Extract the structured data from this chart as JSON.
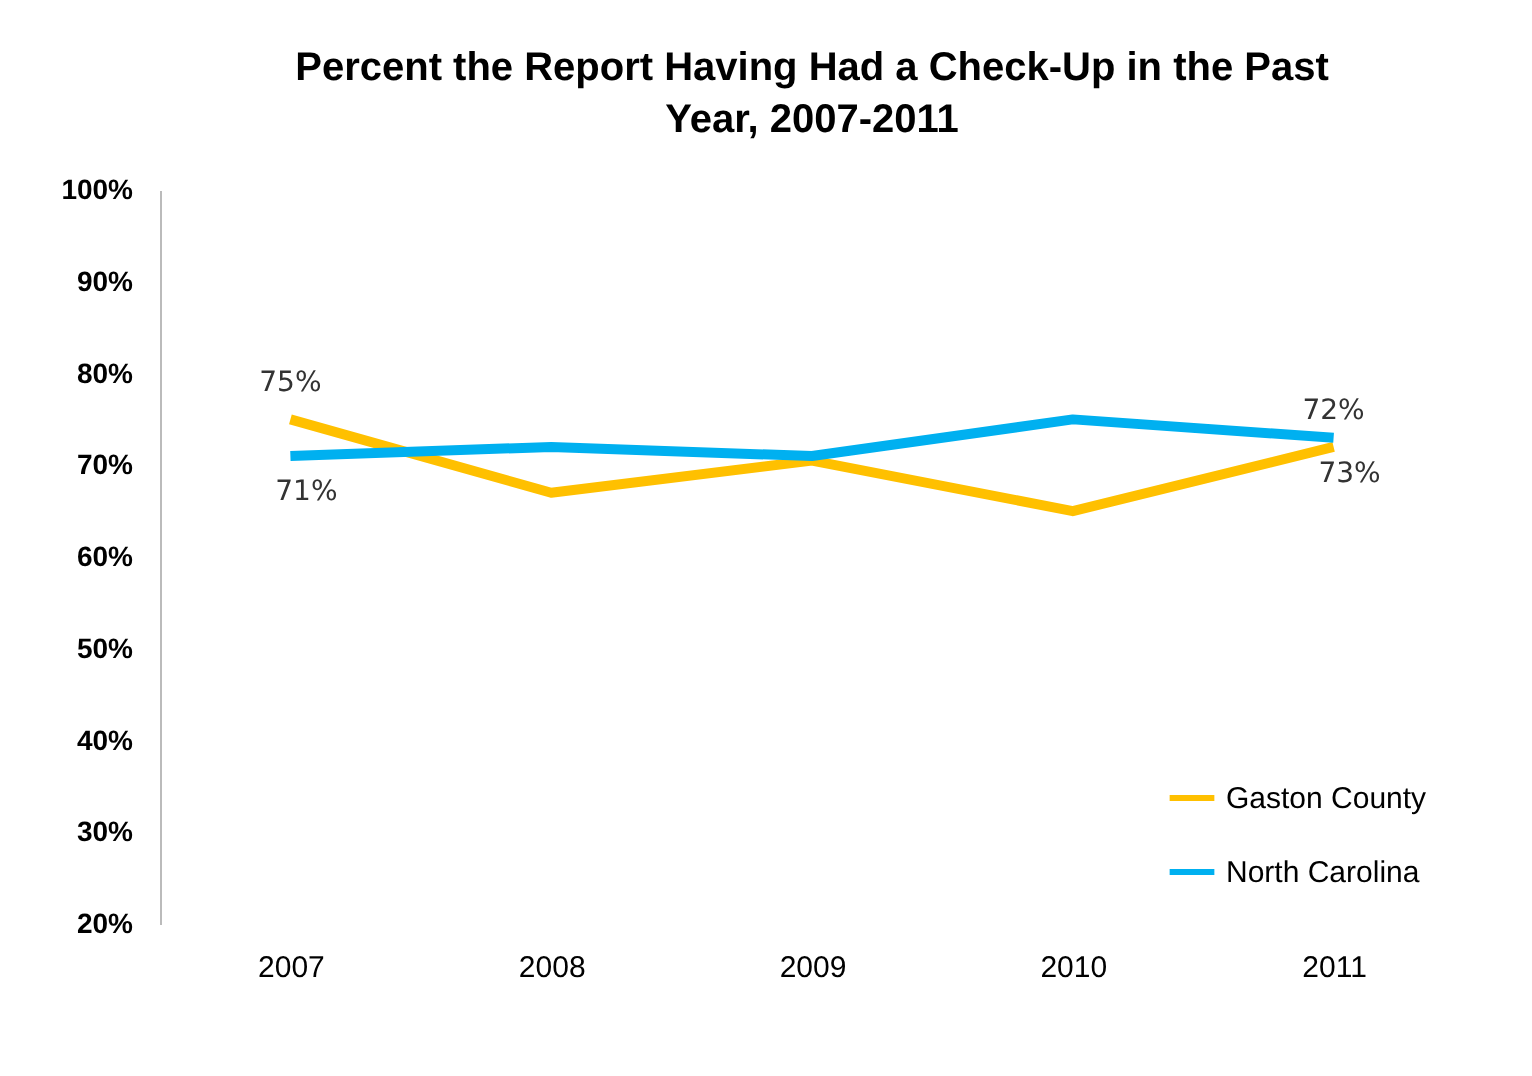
{
  "chart_data": {
    "type": "line",
    "title": "Percent the Report Having Had a Check-Up in the Past Year, 2007-2011",
    "categories": [
      "2007",
      "2008",
      "2009",
      "2010",
      "2011"
    ],
    "series": [
      {
        "name": "Gaston County",
        "color": "#ffc000",
        "values": [
          75,
          67,
          70.5,
          65,
          72
        ],
        "value_labels": [
          "75%",
          null,
          null,
          null,
          "72%"
        ]
      },
      {
        "name": "North Carolina",
        "color": "#00b0f0",
        "values": [
          71,
          72,
          71,
          75,
          73
        ],
        "value_labels": [
          "71%",
          null,
          null,
          null,
          "73%"
        ]
      }
    ],
    "ylim": [
      20,
      100
    ],
    "yticks": [
      {
        "value": 20,
        "label": "20%"
      },
      {
        "value": 30,
        "label": "30%"
      },
      {
        "value": 40,
        "label": "40%"
      },
      {
        "value": 50,
        "label": "50%"
      },
      {
        "value": 60,
        "label": "60%"
      },
      {
        "value": 70,
        "label": "70%"
      },
      {
        "value": 80,
        "label": "80%"
      },
      {
        "value": 90,
        "label": "90%"
      },
      {
        "value": 100,
        "label": "100%"
      }
    ],
    "grid": false,
    "legend": "bottom right",
    "marker": "none",
    "line_style": "solid"
  }
}
